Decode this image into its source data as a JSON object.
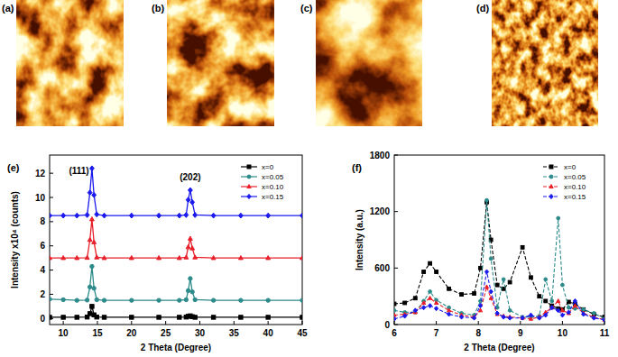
{
  "panels": [
    "(a)",
    "(b)",
    "(c)",
    "(d)"
  ],
  "chart_data": [
    {
      "type": "line",
      "title": "(e)",
      "x_label": "2 Theta (Degree)",
      "y_label": "Intensity x10⁴ (counts)",
      "xlim": [
        8,
        45
      ],
      "ylim": [
        -0.5,
        13.5
      ],
      "xticks": [
        10,
        15,
        20,
        25,
        30,
        35,
        40,
        45
      ],
      "yticks": [
        0,
        2,
        4,
        6,
        8,
        10,
        12
      ],
      "grid": false,
      "legend": "upper right",
      "annotations": [
        {
          "text": "(111)",
          "x": 12.3,
          "y": 11.9
        },
        {
          "text": "(202)",
          "x": 28.6,
          "y": 11.4
        }
      ],
      "x": [
        8,
        10,
        12,
        13.5,
        13.9,
        14.2,
        14.5,
        14.9,
        16,
        20,
        24,
        27,
        28.0,
        28.3,
        28.6,
        28.9,
        29.3,
        32,
        36,
        40,
        45
      ],
      "series": [
        {
          "name": "x=0",
          "color": "#000000",
          "marker": "square",
          "line_style": "solid",
          "values": [
            0.1,
            0.1,
            0.1,
            0.12,
            0.4,
            1.0,
            0.3,
            0.12,
            0.1,
            0.1,
            0.1,
            0.1,
            0.12,
            0.18,
            0.22,
            0.15,
            0.1,
            0.1,
            0.1,
            0.1,
            0.1
          ]
        },
        {
          "name": "x=0.05",
          "color": "#2e8b8b",
          "marker": "circle",
          "line_style": "solid",
          "values": [
            1.6,
            1.55,
            1.5,
            1.52,
            2.6,
            4.3,
            2.5,
            1.55,
            1.5,
            1.5,
            1.5,
            1.5,
            1.55,
            2.3,
            3.3,
            2.2,
            1.55,
            1.5,
            1.5,
            1.5,
            1.5
          ]
        },
        {
          "name": "x=0.10",
          "color": "#e8202a",
          "marker": "triangle",
          "line_style": "solid",
          "values": [
            5.0,
            5.0,
            5.0,
            5.02,
            6.5,
            8.2,
            6.3,
            5.05,
            5.0,
            5.0,
            5.0,
            5.0,
            5.05,
            5.9,
            6.6,
            5.8,
            5.05,
            5.0,
            5.0,
            5.0,
            5.0
          ]
        },
        {
          "name": "x=0.15",
          "color": "#1a1aee",
          "marker": "diamond",
          "line_style": "solid",
          "values": [
            8.5,
            8.5,
            8.5,
            8.55,
            10.4,
            12.4,
            10.2,
            8.6,
            8.5,
            8.5,
            8.5,
            8.5,
            8.55,
            9.8,
            10.6,
            9.6,
            8.55,
            8.5,
            8.5,
            8.5,
            8.5
          ]
        }
      ]
    },
    {
      "type": "line",
      "title": "(f)",
      "x_label": "2 Theta (Degree)",
      "y_label": "Intensity (a.u.)",
      "xlim": [
        6,
        11
      ],
      "ylim": [
        0,
        1800
      ],
      "xticks": [
        6,
        7,
        8,
        9,
        10,
        11
      ],
      "yticks": [
        0,
        600,
        1200,
        1800
      ],
      "grid": false,
      "legend": "upper right",
      "x": [
        6,
        6.25,
        6.5,
        6.7,
        6.85,
        7.0,
        7.3,
        7.6,
        7.9,
        8.05,
        8.2,
        8.3,
        8.45,
        8.6,
        8.75,
        9.05,
        9.25,
        9.45,
        9.6,
        9.75,
        9.9,
        10.0,
        10.15,
        10.3,
        10.5,
        10.75,
        11
      ],
      "series": [
        {
          "name": "x=0",
          "color": "#000000",
          "marker": "square",
          "line_style": "dashed",
          "values": [
            220,
            230,
            280,
            560,
            650,
            560,
            380,
            320,
            330,
            600,
            1300,
            900,
            420,
            380,
            450,
            820,
            500,
            300,
            250,
            200,
            170,
            160,
            240,
            220,
            160,
            110,
            80
          ]
        },
        {
          "name": "x=0.05",
          "color": "#2e8b8b",
          "marker": "circle",
          "line_style": "dashed",
          "values": [
            150,
            130,
            130,
            250,
            350,
            260,
            180,
            120,
            100,
            250,
            1320,
            700,
            180,
            480,
            150,
            80,
            80,
            90,
            480,
            250,
            1130,
            420,
            180,
            170,
            160,
            120,
            60
          ]
        },
        {
          "name": "x=0.10",
          "color": "#e8202a",
          "marker": "triangle",
          "line_style": "dashed",
          "values": [
            100,
            110,
            130,
            230,
            280,
            230,
            150,
            100,
            80,
            150,
            400,
            280,
            110,
            90,
            80,
            70,
            60,
            80,
            130,
            180,
            250,
            150,
            120,
            200,
            120,
            80,
            50
          ]
        },
        {
          "name": "x=0.15",
          "color": "#1a1aee",
          "marker": "diamond",
          "line_style": "dashed",
          "values": [
            60,
            90,
            150,
            180,
            200,
            170,
            110,
            80,
            70,
            200,
            560,
            350,
            120,
            80,
            70,
            70,
            100,
            70,
            100,
            180,
            150,
            100,
            130,
            250,
            110,
            70,
            50
          ]
        }
      ]
    }
  ]
}
